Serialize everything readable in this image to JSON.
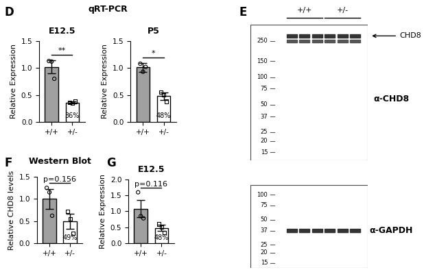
{
  "chart_data": [
    {
      "panel": "D",
      "section": "qRT-PCR",
      "type": "bar",
      "title": "E12.5",
      "y_label": "Relative Expression",
      "categories": [
        "+/+",
        "+/-"
      ],
      "values": [
        1.02,
        0.36
      ],
      "errors": [
        0.12,
        0.02
      ],
      "points": [
        [
          1.13,
          1.12,
          0.8
        ],
        [
          0.36,
          0.35,
          0.38
        ]
      ],
      "colors": [
        "#a0a0a0",
        "#ffffff"
      ],
      "bar_texts": [
        null,
        "36%"
      ],
      "comparison": "**",
      "ylim": [
        0,
        1.5
      ],
      "yticks": [
        {
          "value": 0,
          "label": "0.0"
        },
        {
          "value": 0.5,
          "label": "0.5"
        },
        {
          "value": 1.0,
          "label": "1.0"
        },
        {
          "value": 1.5,
          "label": "1.5"
        }
      ]
    },
    {
      "type": "bar",
      "title": "P5",
      "y_label": "Relative Expression",
      "categories": [
        "+/+",
        "+/-"
      ],
      "values": [
        1.01,
        0.48
      ],
      "errors": [
        0.08,
        0.07
      ],
      "points": [
        [
          1.08,
          0.93,
          1.02
        ],
        [
          0.55,
          0.5,
          0.38
        ]
      ],
      "colors": [
        "#a0a0a0",
        "#ffffff"
      ],
      "bar_texts": [
        null,
        "48%"
      ],
      "comparison": "*",
      "ylim": [
        0,
        1.5
      ],
      "yticks": [
        {
          "value": 0,
          "label": "0.0"
        },
        {
          "value": 0.5,
          "label": "0.5"
        },
        {
          "value": 1.0,
          "label": "1.0"
        },
        {
          "value": 1.5,
          "label": "1.5"
        }
      ]
    },
    {
      "panel": "F",
      "type": "bar",
      "title": "Western Blot",
      "y_label": "Relative CHD8 levels",
      "categories": [
        "+/+",
        "+/-"
      ],
      "values": [
        1.0,
        0.49
      ],
      "errors": [
        0.22,
        0.17
      ],
      "points": [
        [
          1.25,
          1.15,
          0.62
        ],
        [
          0.72,
          0.55,
          0.22
        ]
      ],
      "colors": [
        "#a0a0a0",
        "#ffffff"
      ],
      "bar_texts": [
        null,
        "49%"
      ],
      "comparison": "p=0.156",
      "ylim": [
        0,
        1.5
      ],
      "yticks": [
        {
          "value": 0,
          "label": "0.0"
        },
        {
          "value": 0.5,
          "label": "0.5"
        },
        {
          "value": 1.0,
          "label": "1.0"
        },
        {
          "value": 1.5,
          "label": "1.5"
        }
      ]
    },
    {
      "panel": "G",
      "type": "bar",
      "title": "E12.5",
      "y_label": "Relative Expression",
      "categories": [
        "+/+",
        "+/-"
      ],
      "values": [
        1.08,
        0.48
      ],
      "errors": [
        0.27,
        0.09
      ],
      "points": [
        [
          1.6,
          0.85,
          0.78
        ],
        [
          0.6,
          0.5,
          0.33
        ]
      ],
      "colors": [
        "#a0a0a0",
        "#ffffff"
      ],
      "bar_texts": [
        null,
        "48%"
      ],
      "comparison": "p=0.116",
      "ylim": [
        0,
        2.0
      ],
      "yticks": [
        {
          "value": 0,
          "label": "0.0"
        },
        {
          "value": 0.5,
          "label": "0.5"
        },
        {
          "value": 1.0,
          "label": "1.0"
        },
        {
          "value": 1.5,
          "label": "1.5"
        },
        {
          "value": 2.0,
          "label": "2.0"
        }
      ]
    }
  ],
  "blot": {
    "panel": "E",
    "lanes": [
      "+/+",
      "+/-"
    ],
    "replicates": 3,
    "protein": "CHD8",
    "upper": {
      "antibody": "α-CHD8",
      "ladder": [
        250,
        150,
        100,
        75,
        50,
        37,
        25,
        20,
        15
      ]
    },
    "lower": {
      "antibody": "α-GAPDH",
      "ladder": [
        100,
        75,
        50,
        37,
        25,
        20,
        15
      ]
    }
  }
}
